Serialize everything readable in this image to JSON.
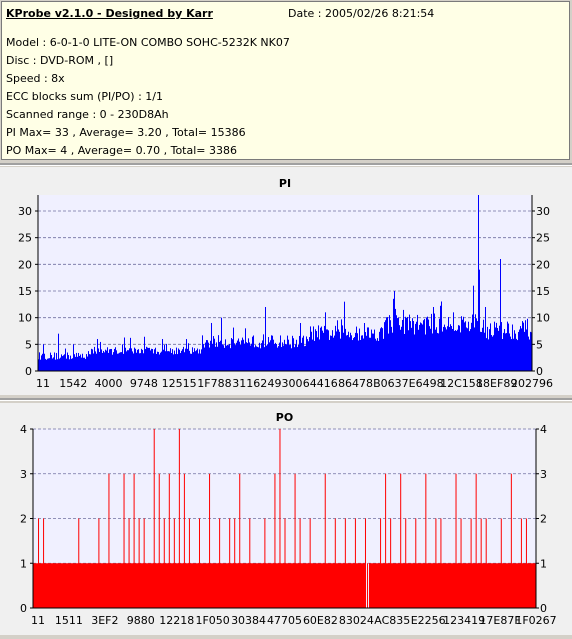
{
  "info": {
    "title": "KProbe v2.1.0 - Designed by Karr",
    "date": "Date : 2005/02/26 8:21:54",
    "lines": [
      "Model : 6-0-1-0 LITE-ON COMBO SOHC-5232K NK07",
      "Disc : DVD-ROM ,  []",
      "Speed : 8x",
      "ECC blocks sum (PI/PO) : 1/1",
      "Scanned range : 0 - 230D8Ah",
      "PI Max= 33 , Average= 3.20 , Total= 15386",
      "PO Max= 4 , Average= 0.70 , Total= 3386"
    ]
  },
  "colors": {
    "pi": "#0000ff",
    "po": "#ff0000",
    "plot_bg": "#f0f0ff",
    "grid": "#7070a0"
  },
  "chart_data": [
    {
      "type": "bar",
      "title": "PI",
      "ylim": [
        0,
        33
      ],
      "yticks": [
        0,
        5,
        10,
        15,
        20,
        25,
        30
      ],
      "xticks": [
        "11",
        "1542",
        "4000",
        "9748",
        "12515",
        "1F788",
        "31162",
        "49300",
        "64416",
        "86478",
        "B0637",
        "E6498",
        "12C158",
        "18EF89",
        "202796"
      ],
      "grid": true,
      "segments": [
        {
          "x": [
            0.0,
            0.1
          ],
          "base": 2.5,
          "var": 1.5,
          "spikes": [
            [
              0.01,
              5
            ],
            [
              0.04,
              7
            ],
            [
              0.07,
              5
            ]
          ]
        },
        {
          "x": [
            0.1,
            0.33
          ],
          "base": 3.5,
          "var": 1.5,
          "spikes": [
            [
              0.12,
              6
            ],
            [
              0.17,
              5
            ],
            [
              0.25,
              6
            ],
            [
              0.3,
              6
            ]
          ]
        },
        {
          "x": [
            0.33,
            0.55
          ],
          "base": 5.0,
          "var": 2.5,
          "spikes": [
            [
              0.37,
              10
            ],
            [
              0.42,
              8
            ],
            [
              0.46,
              12
            ],
            [
              0.53,
              9
            ]
          ]
        },
        {
          "x": [
            0.55,
            0.7
          ],
          "base": 6.5,
          "var": 3.0,
          "spikes": [
            [
              0.58,
              11
            ],
            [
              0.62,
              13
            ],
            [
              0.66,
              9
            ]
          ]
        },
        {
          "x": [
            0.7,
            0.89
          ],
          "base": 8.0,
          "var": 4.0,
          "spikes": [
            [
              0.72,
              15
            ],
            [
              0.75,
              14
            ],
            [
              0.8,
              12
            ],
            [
              0.84,
              11
            ],
            [
              0.88,
              16
            ]
          ]
        },
        {
          "x": [
            0.89,
            1.0
          ],
          "base": 7.0,
          "var": 4.0,
          "spikes": [
            [
              0.885,
              23
            ],
            [
              0.89,
              33
            ],
            [
              0.893,
              19
            ],
            [
              0.935,
              21
            ],
            [
              0.905,
              12
            ]
          ]
        }
      ]
    },
    {
      "type": "bar",
      "title": "PO",
      "ylim": [
        0,
        4
      ],
      "yticks": [
        0,
        1,
        2,
        3,
        4
      ],
      "xticks": [
        "11",
        "1511",
        "3EF2",
        "9880",
        "12218",
        "1F050",
        "30384",
        "47705",
        "60E82",
        "83024",
        "AC835",
        "E2256",
        "123419",
        "17E87F",
        "1F0267"
      ],
      "grid": true,
      "baseline": 1,
      "gaps": [
        [
          0.66,
          0.668
        ]
      ],
      "spikes": [
        [
          0.01,
          2
        ],
        [
          0.02,
          2
        ],
        [
          0.04,
          1
        ],
        [
          0.09,
          2
        ],
        [
          0.13,
          2
        ],
        [
          0.15,
          3
        ],
        [
          0.18,
          3
        ],
        [
          0.19,
          2
        ],
        [
          0.2,
          3
        ],
        [
          0.21,
          2
        ],
        [
          0.22,
          2
        ],
        [
          0.24,
          4
        ],
        [
          0.25,
          3
        ],
        [
          0.26,
          2
        ],
        [
          0.27,
          3
        ],
        [
          0.28,
          2
        ],
        [
          0.29,
          4
        ],
        [
          0.3,
          3
        ],
        [
          0.31,
          2
        ],
        [
          0.33,
          2
        ],
        [
          0.35,
          3
        ],
        [
          0.37,
          2
        ],
        [
          0.39,
          2
        ],
        [
          0.4,
          2
        ],
        [
          0.41,
          3
        ],
        [
          0.43,
          2
        ],
        [
          0.46,
          2
        ],
        [
          0.48,
          3
        ],
        [
          0.49,
          4
        ],
        [
          0.5,
          2
        ],
        [
          0.52,
          3
        ],
        [
          0.53,
          2
        ],
        [
          0.55,
          2
        ],
        [
          0.58,
          3
        ],
        [
          0.6,
          2
        ],
        [
          0.62,
          2
        ],
        [
          0.64,
          2
        ],
        [
          0.66,
          2
        ],
        [
          0.69,
          2
        ],
        [
          0.7,
          3
        ],
        [
          0.71,
          2
        ],
        [
          0.73,
          3
        ],
        [
          0.74,
          2
        ],
        [
          0.76,
          2
        ],
        [
          0.78,
          3
        ],
        [
          0.8,
          2
        ],
        [
          0.81,
          2
        ],
        [
          0.84,
          3
        ],
        [
          0.85,
          2
        ],
        [
          0.87,
          2
        ],
        [
          0.88,
          3
        ],
        [
          0.89,
          2
        ],
        [
          0.9,
          2
        ],
        [
          0.93,
          2
        ],
        [
          0.95,
          3
        ],
        [
          0.97,
          2
        ],
        [
          0.98,
          2
        ]
      ]
    }
  ]
}
